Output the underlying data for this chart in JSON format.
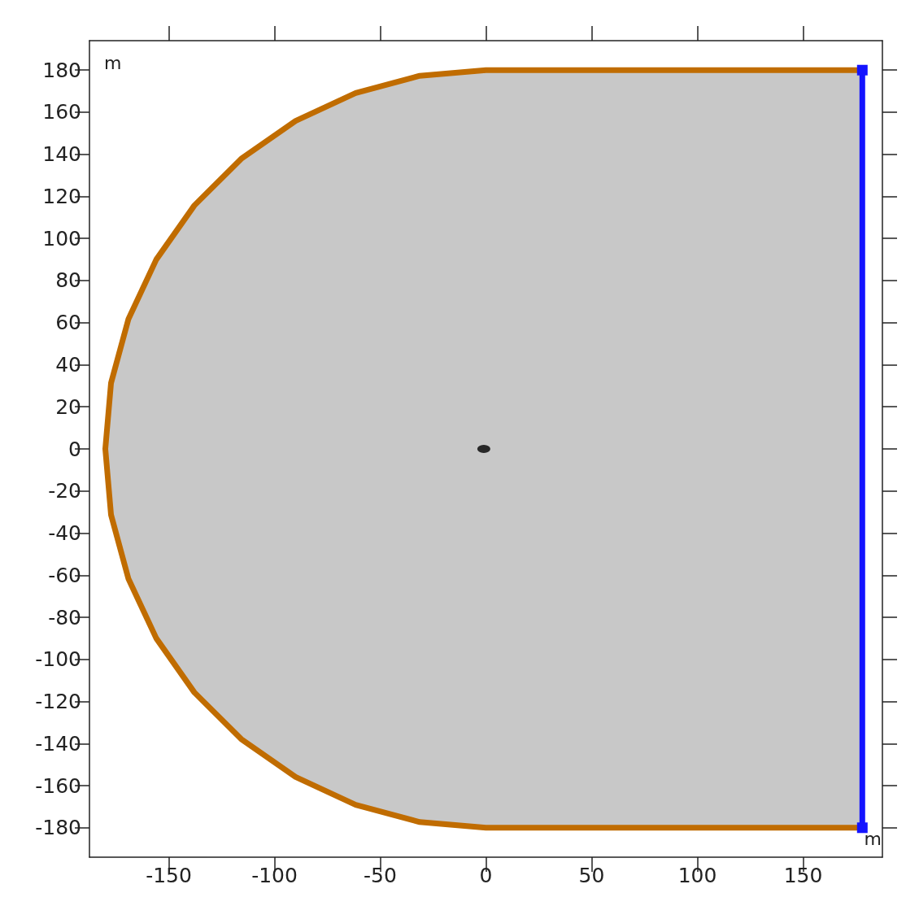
{
  "chart_data": {
    "type": "line",
    "xlabel": "m",
    "ylabel": "m",
    "xlim": [
      -187.5,
      187.5
    ],
    "ylim": [
      -194,
      194
    ],
    "xticks": [
      -150,
      -100,
      -50,
      0,
      50,
      100,
      150
    ],
    "yticks": [
      -180,
      -160,
      -140,
      -120,
      -100,
      -80,
      -60,
      -40,
      -20,
      0,
      20,
      40,
      60,
      80,
      100,
      120,
      140,
      160,
      180
    ],
    "grid": false,
    "series": [
      {
        "type": "area",
        "color": "#c8c8c8",
        "x": [
          -180,
          -177.3,
          -169.1,
          -155.9,
          -137.9,
          -115.7,
          -90,
          -61.6,
          -31.3,
          0,
          178
        ],
        "values": [
          0,
          31.3,
          61.6,
          90,
          115.7,
          137.9,
          155.9,
          169.1,
          177.3,
          180,
          180
        ]
      },
      {
        "type": "area",
        "color": "#c8c8c8",
        "x": [
          -180,
          -177.3,
          -169.1,
          -155.9,
          -137.9,
          -115.7,
          -90,
          -61.6,
          -31.3,
          0,
          178
        ],
        "values": [
          0,
          -31.3,
          -61.6,
          -90,
          -115.7,
          -137.9,
          -155.9,
          -169.1,
          -177.3,
          -180,
          -180
        ]
      },
      {
        "type": "line",
        "color": "#c06c00",
        "x": [
          178,
          0,
          -31.3,
          -61.6,
          -90,
          -115.7,
          -137.9,
          -155.9,
          -169.1,
          -177.3,
          -180,
          -177.3,
          -169.1,
          -155.9,
          -137.9,
          -115.7,
          -90,
          -61.6,
          -31.3,
          0,
          178
        ],
        "values": [
          180,
          180,
          177.3,
          169.1,
          155.9,
          137.9,
          115.7,
          90,
          61.6,
          31.3,
          0,
          -31.3,
          -61.6,
          -90,
          -115.7,
          -137.9,
          -155.9,
          -169.1,
          -177.3,
          -180,
          -180
        ]
      },
      {
        "color": "#1414ff",
        "marker": "square",
        "x": [
          178,
          178
        ],
        "values": [
          -180,
          180
        ]
      },
      {
        "type": "scatter",
        "color": "#000000",
        "marker": "circle",
        "x": [
          -1
        ],
        "values": [
          0
        ]
      }
    ]
  }
}
